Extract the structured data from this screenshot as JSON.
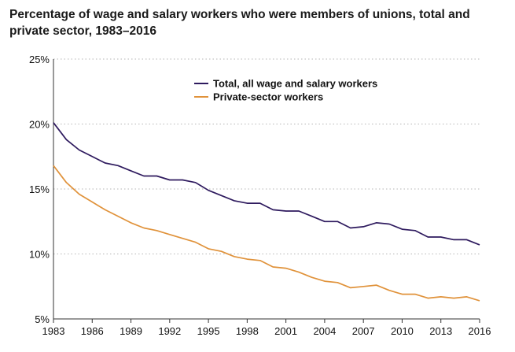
{
  "chart_data": {
    "type": "line",
    "title": "Percentage of wage and salary workers who were members of unions, total and private sector, 1983–2016",
    "xlabel": "",
    "ylabel": "",
    "ylim": [
      5,
      25
    ],
    "xlim": [
      1983,
      2016
    ],
    "y_ticks": [
      5,
      10,
      15,
      20,
      25
    ],
    "y_tick_labels": [
      "5%",
      "10%",
      "15%",
      "20%",
      "25%"
    ],
    "x_ticks": [
      1983,
      1986,
      1989,
      1992,
      1995,
      1998,
      2001,
      2004,
      2007,
      2010,
      2013,
      2016
    ],
    "x_tick_labels": [
      "1983",
      "1986",
      "1989",
      "1992",
      "1995",
      "1998",
      "2001",
      "2004",
      "2007",
      "2010",
      "2013",
      "2016"
    ],
    "grid": "horizontal dotted",
    "legend_position": "top-right",
    "x": [
      1983,
      1984,
      1985,
      1986,
      1987,
      1988,
      1989,
      1990,
      1991,
      1992,
      1993,
      1994,
      1995,
      1996,
      1997,
      1998,
      1999,
      2000,
      2001,
      2002,
      2003,
      2004,
      2005,
      2006,
      2007,
      2008,
      2009,
      2010,
      2011,
      2012,
      2013,
      2014,
      2015,
      2016
    ],
    "series": [
      {
        "name": "Total, all wage and salary workers",
        "color": "#2e1a5e",
        "values": [
          20.1,
          18.8,
          18.0,
          17.5,
          17.0,
          16.8,
          16.4,
          16.0,
          16.0,
          15.7,
          15.7,
          15.5,
          14.9,
          14.5,
          14.1,
          13.9,
          13.9,
          13.4,
          13.3,
          13.3,
          12.9,
          12.5,
          12.5,
          12.0,
          12.1,
          12.4,
          12.3,
          11.9,
          11.8,
          11.3,
          11.3,
          11.1,
          11.1,
          10.7
        ]
      },
      {
        "name": "Private-sector workers",
        "color": "#e0923a",
        "values": [
          16.8,
          15.5,
          14.6,
          14.0,
          13.4,
          12.9,
          12.4,
          12.0,
          11.8,
          11.5,
          11.2,
          10.9,
          10.4,
          10.2,
          9.8,
          9.6,
          9.5,
          9.0,
          8.9,
          8.6,
          8.2,
          7.9,
          7.8,
          7.4,
          7.5,
          7.6,
          7.2,
          6.9,
          6.9,
          6.6,
          6.7,
          6.6,
          6.7,
          6.4
        ]
      }
    ]
  }
}
